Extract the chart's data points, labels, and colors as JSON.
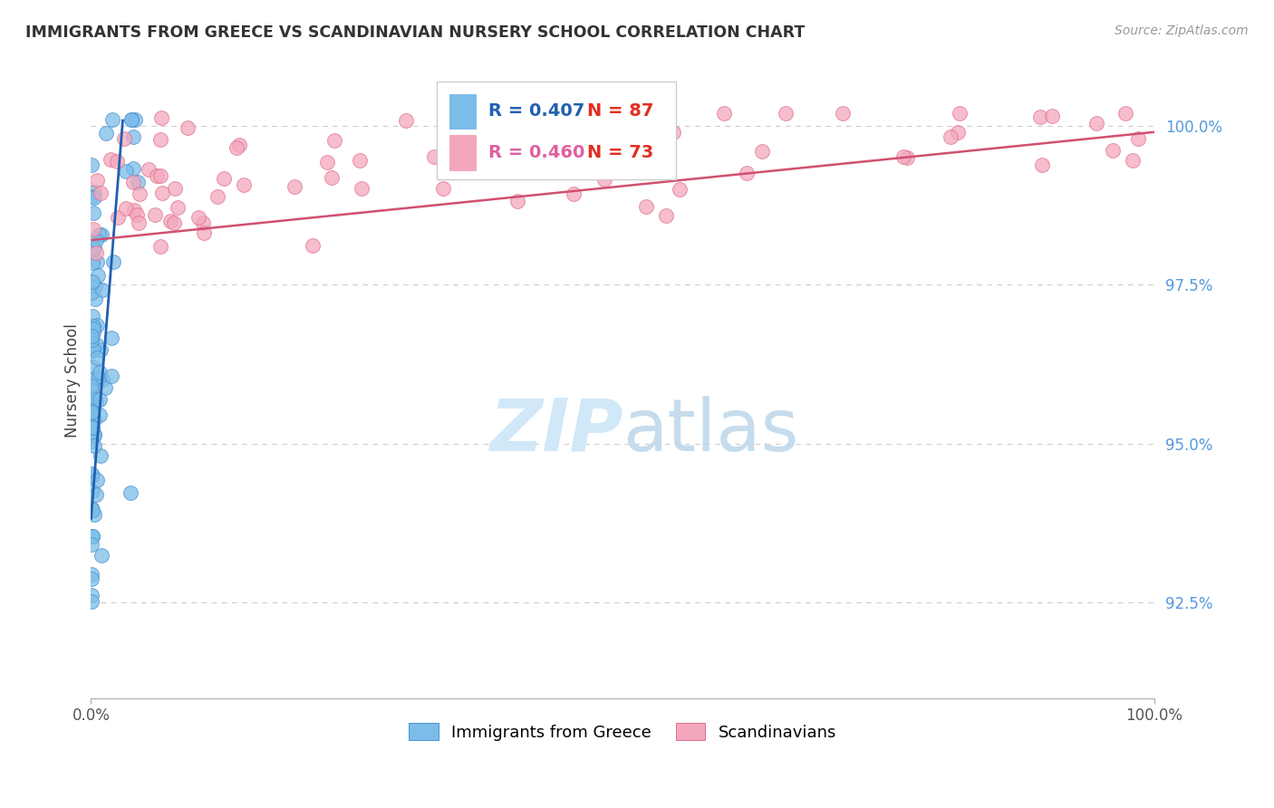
{
  "title": "IMMIGRANTS FROM GREECE VS SCANDINAVIAN NURSERY SCHOOL CORRELATION CHART",
  "source": "Source: ZipAtlas.com",
  "ylabel": "Nursery School",
  "legend_label1": "Immigrants from Greece",
  "legend_label2": "Scandinavians",
  "R1": 0.407,
  "N1": 87,
  "R2": 0.46,
  "N2": 73,
  "color1": "#7bbde8",
  "color2": "#f4a7bc",
  "color1_edge": "#4a90d0",
  "color2_edge": "#e07090",
  "trend1_color": "#2060b0",
  "trend2_color": "#d05070",
  "watermark_color": "#d0e8f8",
  "ytick_color": "#5599dd",
  "grid_color": "#cccccc",
  "title_color": "#333333",
  "source_color": "#999999",
  "xlim": [
    0.0,
    100.0
  ],
  "ylim": [
    91.0,
    101.0
  ],
  "yticks": [
    92.5,
    95.0,
    97.5,
    100.0
  ],
  "blue_seed": 42,
  "pink_seed": 99
}
